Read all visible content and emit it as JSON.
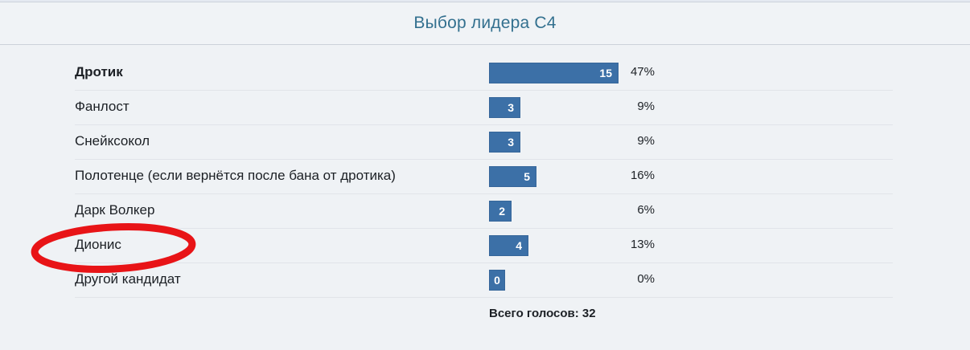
{
  "header": {
    "title": "Выбор лидера C4"
  },
  "poll": {
    "options": [
      {
        "label": "Дротик",
        "votes": 15,
        "percent": "47%",
        "bold": true
      },
      {
        "label": "Фанлост",
        "votes": 3,
        "percent": "9%",
        "bold": false
      },
      {
        "label": "Снейксокол",
        "votes": 3,
        "percent": "9%",
        "bold": false
      },
      {
        "label": "Полотенце (если вернётся после бана от дротика)",
        "votes": 5,
        "percent": "16%",
        "bold": false
      },
      {
        "label": "Дарк Волкер",
        "votes": 2,
        "percent": "6%",
        "bold": false
      },
      {
        "label": "Дионис",
        "votes": 4,
        "percent": "13%",
        "bold": false
      },
      {
        "label": "Другой кандидат",
        "votes": 0,
        "percent": "0%",
        "bold": false
      }
    ],
    "total_label": "Всего голосов: 32"
  },
  "annotation": {
    "type": "hand-drawn-red-ellipse",
    "target": "Дионис",
    "color": "#e81417"
  },
  "colors": {
    "bar": "#3c70a7",
    "title": "#33708f",
    "background": "#eff2f5",
    "annotation_red": "#e81417"
  },
  "chart_data": {
    "type": "bar",
    "orientation": "horizontal",
    "title": "Выбор лидера C4",
    "categories": [
      "Дротик",
      "Фанлост",
      "Снейксокол",
      "Полотенце (если вернётся после бана от дротика)",
      "Дарк Волкер",
      "Дионис",
      "Другой кандидат"
    ],
    "values": [
      15,
      3,
      3,
      5,
      2,
      4,
      0
    ],
    "percents": [
      47,
      9,
      9,
      16,
      6,
      13,
      0
    ],
    "total_votes": 32,
    "value_labels_inside_bars": true,
    "percent_labels_right": true,
    "xlim": [
      0,
      15
    ],
    "grid": false,
    "legend": false
  }
}
